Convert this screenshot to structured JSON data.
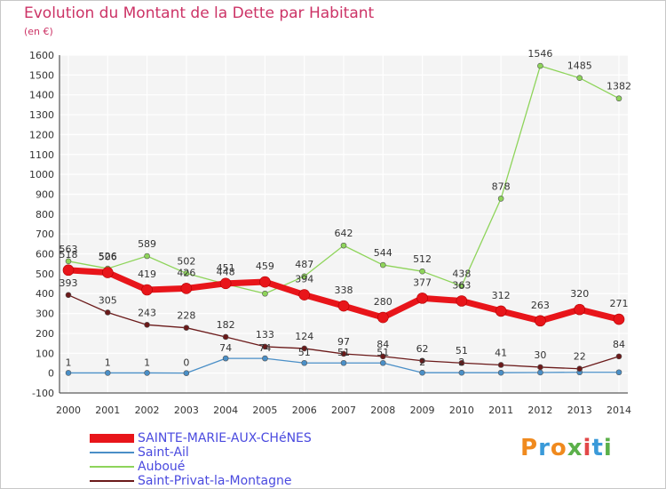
{
  "header": {
    "title": "Evolution du Montant de la Dette par Habitant",
    "subtitle": "(en €)"
  },
  "brand": {
    "text": "Proxiti",
    "colors": [
      "#f08a1e",
      "#3a9ad9",
      "#f08a1e",
      "#5bb04a",
      "#e24848",
      "#3a9ad9",
      "#5bb04a"
    ]
  },
  "chart_data": {
    "type": "line",
    "x": [
      "2000",
      "2001",
      "2002",
      "2003",
      "2004",
      "2005",
      "2006",
      "2007",
      "2008",
      "2009",
      "2010",
      "2011",
      "2012",
      "2013",
      "2014"
    ],
    "ylim": [
      -100,
      1600
    ],
    "yticks": [
      "-100",
      "0",
      "100",
      "200",
      "300",
      "400",
      "500",
      "600",
      "700",
      "800",
      "900",
      "1000",
      "1100",
      "1200",
      "1300",
      "1400",
      "1500",
      "1600"
    ],
    "grid": true,
    "legend_position": "bottom-left",
    "series": [
      {
        "name": "SAINTE-MARIE-AUX-CHêNES",
        "color": "#e8151a",
        "values": [
          518,
          506,
          419,
          426,
          451,
          459,
          394,
          338,
          280,
          377,
          363,
          312,
          263,
          320,
          271
        ],
        "labels": [
          "518",
          "506",
          "419",
          "426",
          "451",
          "459",
          "394",
          "338",
          "280",
          "377",
          "363",
          "312",
          "263",
          "320",
          "271"
        ]
      },
      {
        "name": "Saint-Ail",
        "color": "#4a8fc7",
        "values": [
          1,
          1,
          1,
          0,
          74,
          74,
          51,
          51,
          51,
          2,
          2,
          2,
          3,
          4,
          4
        ],
        "labels": [
          "1",
          "1",
          "1",
          "0",
          "74",
          "74",
          "51",
          "51",
          "51",
          "2",
          "2",
          "",
          "",
          "",
          ""
        ]
      },
      {
        "name": "Auboué",
        "color": "#8ed45a",
        "values": [
          563,
          526,
          589,
          502,
          448,
          400,
          487,
          642,
          544,
          512,
          438,
          878,
          1546,
          1485,
          1382
        ],
        "labels": [
          "563",
          "526",
          "589",
          "502",
          "448",
          "",
          "487",
          "642",
          "544",
          "512",
          "438",
          "878",
          "1546",
          "1485",
          "1382"
        ]
      },
      {
        "name": "Saint-Privat-la-Montagne",
        "color": "#6b1a1a",
        "values": [
          393,
          305,
          243,
          228,
          182,
          133,
          124,
          97,
          84,
          62,
          51,
          41,
          30,
          22,
          84
        ],
        "labels": [
          "393",
          "305",
          "243",
          "228",
          "182",
          "133",
          "124",
          "97",
          "84",
          "62",
          "51",
          "41",
          "30",
          "22",
          "84"
        ]
      }
    ]
  },
  "legend": {
    "items": [
      {
        "label": "SAINTE-MARIE-AUX-CHéNES",
        "color": "#e8151a"
      },
      {
        "label": "Saint-Ail",
        "color": "#4a8fc7"
      },
      {
        "label": "Auboué",
        "color": "#8ed45a"
      },
      {
        "label": "Saint-Privat-la-Montagne",
        "color": "#6b1a1a"
      }
    ]
  }
}
